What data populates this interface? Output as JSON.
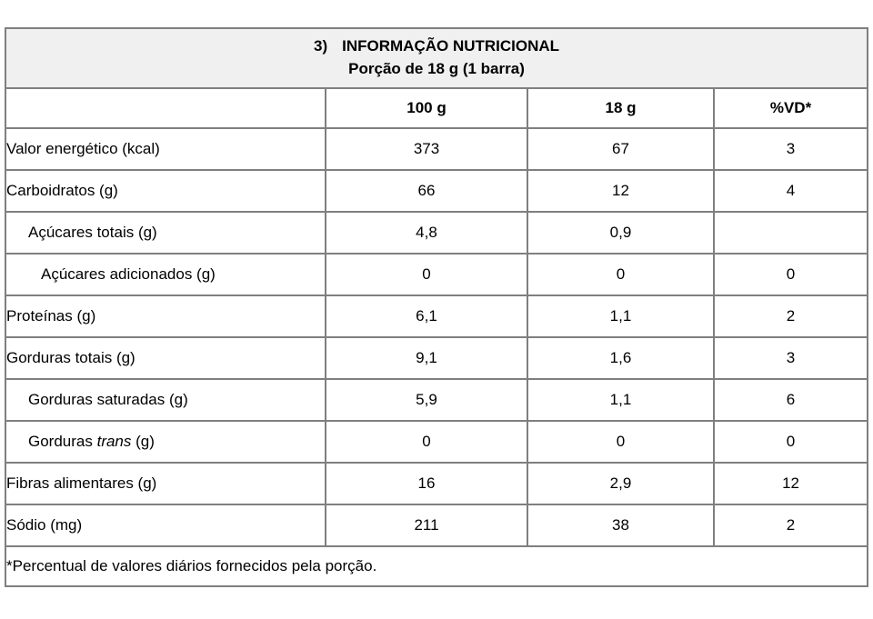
{
  "colors": {
    "border": "#7f7f7f",
    "title_bg": "#f0f0f0",
    "text": "#000000"
  },
  "table": {
    "title_prefix": "3)",
    "title": "INFORMAÇÃO NUTRICIONAL",
    "subtitle": "Porção de 18 g (1 barra)",
    "columns": [
      "",
      "100 g",
      "18 g",
      "%VD*"
    ],
    "rows": [
      {
        "label": "Valor energético (kcal)",
        "indent": 0,
        "values": [
          "373",
          "67",
          "3"
        ]
      },
      {
        "label": "Carboidratos (g)",
        "indent": 0,
        "values": [
          "66",
          "12",
          "4"
        ]
      },
      {
        "label": "Açúcares totais (g)",
        "indent": 1,
        "values": [
          "4,8",
          "0,9",
          ""
        ]
      },
      {
        "label": "Açúcares adicionados (g)",
        "indent": 2,
        "values": [
          "0",
          "0",
          "0"
        ]
      },
      {
        "label": "Proteínas (g)",
        "indent": 0,
        "values": [
          "6,1",
          "1,1",
          "2"
        ]
      },
      {
        "label": "Gorduras totais (g)",
        "indent": 0,
        "values": [
          "9,1",
          "1,6",
          "3"
        ]
      },
      {
        "label": "Gorduras saturadas (g)",
        "indent": 1,
        "values": [
          "5,9",
          "1,1",
          "6"
        ]
      },
      {
        "label": "Gorduras trans (g)",
        "indent": 1,
        "label_parts": [
          {
            "text": "Gorduras ",
            "italic": false
          },
          {
            "text": "trans",
            "italic": true
          },
          {
            "text": " (g)",
            "italic": false
          }
        ],
        "values": [
          "0",
          "0",
          "0"
        ]
      },
      {
        "label": "Fibras alimentares (g)",
        "indent": 0,
        "values": [
          "16",
          "2,9",
          "12"
        ]
      },
      {
        "label": "Sódio (mg)",
        "indent": 0,
        "values": [
          "211",
          "38",
          "2"
        ]
      }
    ],
    "footnote": "*Percentual de valores diários fornecidos pela porção."
  }
}
